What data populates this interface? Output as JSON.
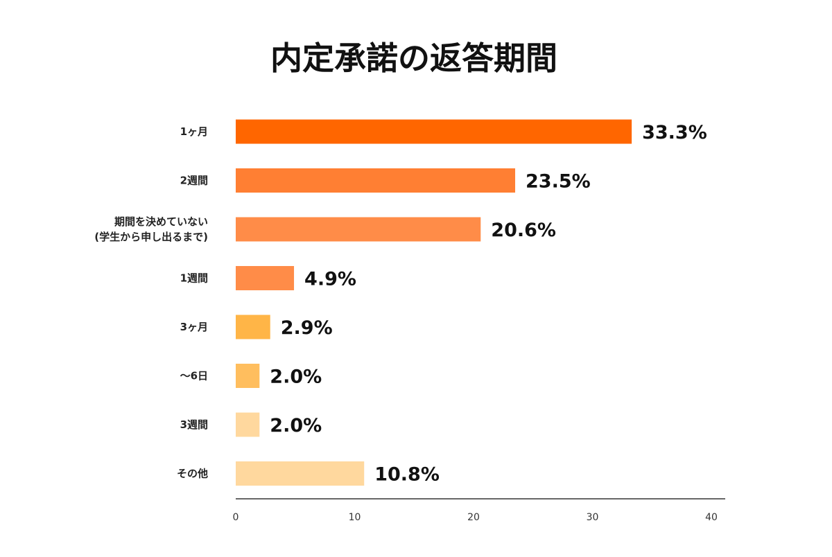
{
  "chart_data": {
    "type": "bar",
    "orientation": "horizontal",
    "title": "内定承諾の返答期間",
    "xlabel": "",
    "ylabel": "",
    "xlim": [
      0,
      40
    ],
    "x_ticks": [
      "0",
      "10",
      "20",
      "30",
      "40"
    ],
    "grid": false,
    "legend": "none",
    "categories": [
      [
        "1ヶ月"
      ],
      [
        "2週間"
      ],
      [
        "期間を決めていない",
        "(学生から申し出るまで)"
      ],
      [
        "1週間"
      ],
      [
        "3ヶ月"
      ],
      [
        "〜6日"
      ],
      [
        "3週間"
      ],
      [
        "その他"
      ]
    ],
    "values": [
      33.3,
      23.5,
      20.6,
      4.9,
      2.9,
      2.0,
      2.0,
      10.8
    ],
    "value_labels": [
      "33.3%",
      "23.5%",
      "20.6%",
      "4.9%",
      "2.9%",
      "2.0%",
      "2.0%",
      "10.8%"
    ],
    "bar_colors": [
      "#ff6600",
      "#ff7f33",
      "#ff8c48",
      "#ff8c48",
      "#ffb547",
      "#ffbe5e",
      "#ffd89e",
      "#ffd89e"
    ],
    "axis_color": "#333333"
  }
}
